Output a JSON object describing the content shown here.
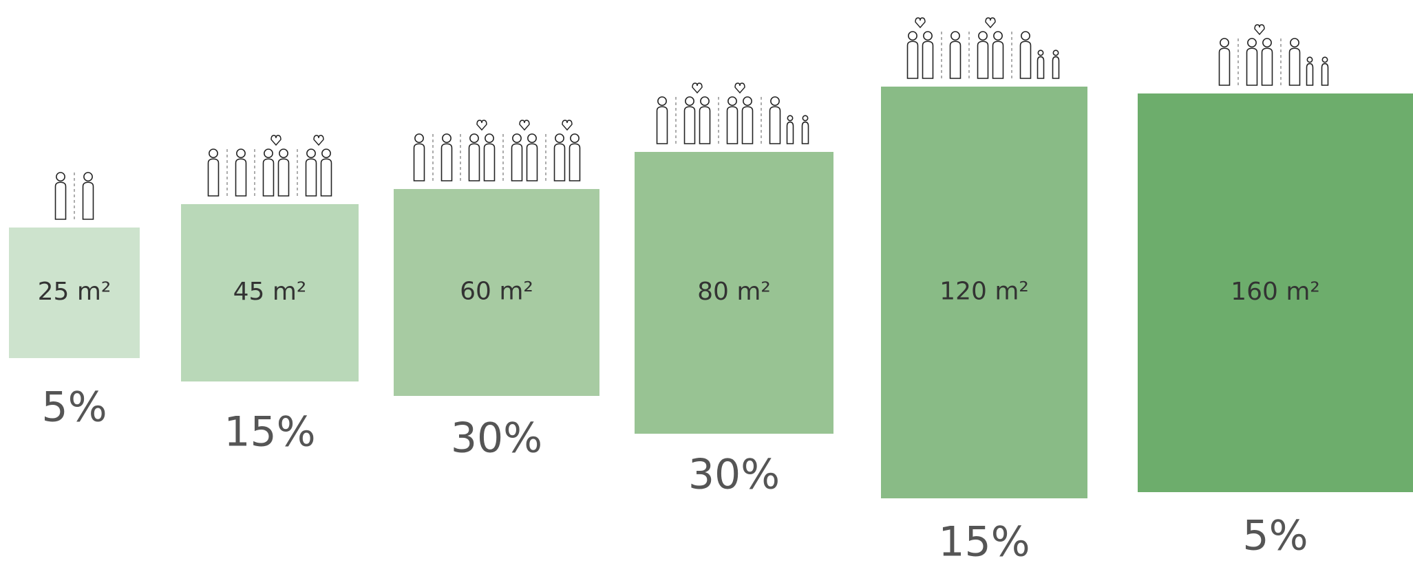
{
  "units": [
    {
      "area": "25 m²",
      "share": "5%"
    },
    {
      "area": "45 m²",
      "share": "15%"
    },
    {
      "area": "60 m²",
      "share": "30%"
    },
    {
      "area": "80 m²",
      "share": "30%"
    },
    {
      "area": "120 m²",
      "share": "15%"
    },
    {
      "area": "160 m²",
      "share": "5%"
    }
  ]
}
